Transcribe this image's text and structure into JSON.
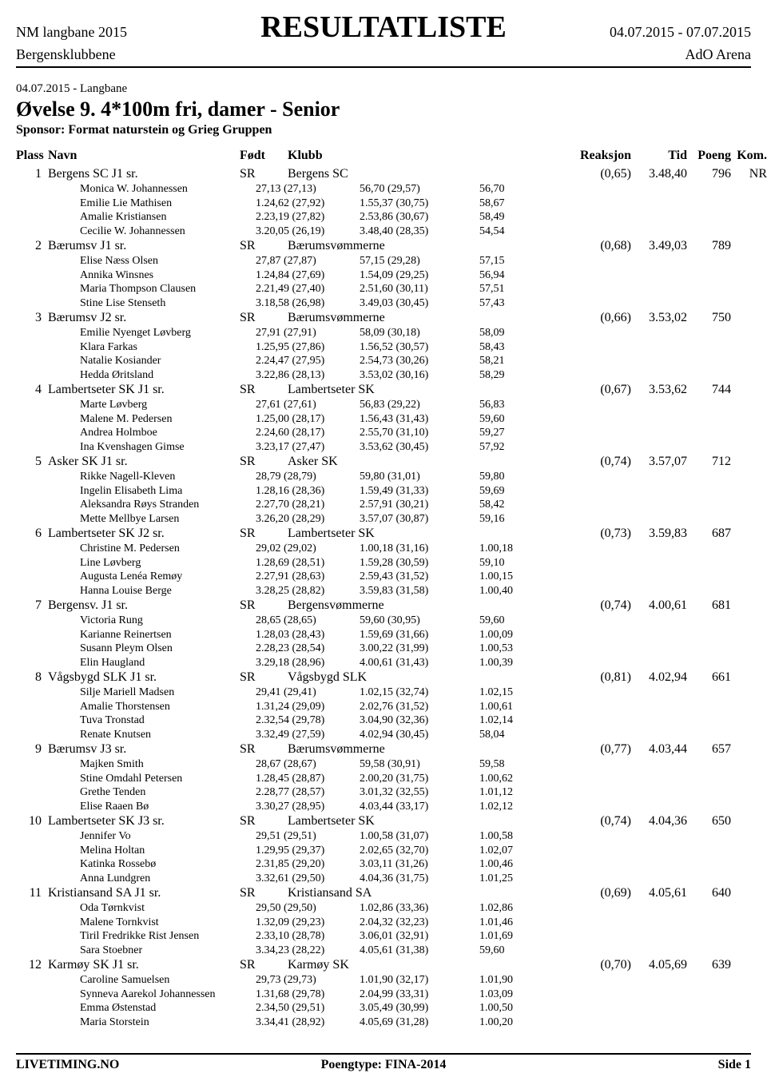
{
  "header": {
    "meet_name": "NM langbane 2015",
    "title": "RESULTATLISTE",
    "date_range": "04.07.2015 - 07.07.2015",
    "club": "Bergensklubbene",
    "venue": "AdO Arena"
  },
  "event": {
    "date_line": "04.07.2015 - Langbane",
    "title": "Øvelse 9. 4*100m fri, damer - Senior",
    "sponsor": "Sponsor: Format naturstein og Grieg Gruppen"
  },
  "columns": {
    "place": "Plass",
    "name": "Navn",
    "born": "Født",
    "club": "Klubb",
    "reaction": "Reaksjon",
    "time": "Tid",
    "points": "Poeng",
    "comment": "Kom."
  },
  "results": [
    {
      "place": "1",
      "team": "Bergens SC J1 sr.",
      "born": "SR",
      "club": "Bergens SC",
      "reaction": "(0,65)",
      "time": "3.48,40",
      "points": "796",
      "comment": "NR",
      "swimmers": [
        {
          "name": "Monica W. Johannessen",
          "s1": "27,13 (27,13)",
          "s2": "56,70 (29,57)",
          "s3": "56,70"
        },
        {
          "name": "Emilie Lie Mathisen",
          "s1": "1.24,62 (27,92)",
          "s2": "1.55,37 (30,75)",
          "s3": "58,67"
        },
        {
          "name": "Amalie Kristiansen",
          "s1": "2.23,19 (27,82)",
          "s2": "2.53,86 (30,67)",
          "s3": "58,49"
        },
        {
          "name": "Cecilie W. Johannessen",
          "s1": "3.20,05 (26,19)",
          "s2": "3.48,40 (28,35)",
          "s3": "54,54"
        }
      ]
    },
    {
      "place": "2",
      "team": "Bærumsv J1 sr.",
      "born": "SR",
      "club": "Bærumsvømmerne",
      "reaction": "(0,68)",
      "time": "3.49,03",
      "points": "789",
      "comment": "",
      "swimmers": [
        {
          "name": "Elise Næss Olsen",
          "s1": "27,87 (27,87)",
          "s2": "57,15 (29,28)",
          "s3": "57,15"
        },
        {
          "name": "Annika Winsnes",
          "s1": "1.24,84 (27,69)",
          "s2": "1.54,09 (29,25)",
          "s3": "56,94"
        },
        {
          "name": "Maria Thompson Clausen",
          "s1": "2.21,49 (27,40)",
          "s2": "2.51,60 (30,11)",
          "s3": "57,51"
        },
        {
          "name": "Stine Lise Stenseth",
          "s1": "3.18,58 (26,98)",
          "s2": "3.49,03 (30,45)",
          "s3": "57,43"
        }
      ]
    },
    {
      "place": "3",
      "team": "Bærumsv J2 sr.",
      "born": "SR",
      "club": "Bærumsvømmerne",
      "reaction": "(0,66)",
      "time": "3.53,02",
      "points": "750",
      "comment": "",
      "swimmers": [
        {
          "name": "Emilie Nyenget Løvberg",
          "s1": "27,91 (27,91)",
          "s2": "58,09 (30,18)",
          "s3": "58,09"
        },
        {
          "name": "Klara Farkas",
          "s1": "1.25,95 (27,86)",
          "s2": "1.56,52 (30,57)",
          "s3": "58,43"
        },
        {
          "name": "Natalie Kosiander",
          "s1": "2.24,47 (27,95)",
          "s2": "2.54,73 (30,26)",
          "s3": "58,21"
        },
        {
          "name": "Hedda Øritsland",
          "s1": "3.22,86 (28,13)",
          "s2": "3.53,02 (30,16)",
          "s3": "58,29"
        }
      ]
    },
    {
      "place": "4",
      "team": "Lambertseter SK J1 sr.",
      "born": "SR",
      "club": "Lambertseter SK",
      "reaction": "(0,67)",
      "time": "3.53,62",
      "points": "744",
      "comment": "",
      "swimmers": [
        {
          "name": "Marte Løvberg",
          "s1": "27,61 (27,61)",
          "s2": "56,83 (29,22)",
          "s3": "56,83"
        },
        {
          "name": "Malene M. Pedersen",
          "s1": "1.25,00 (28,17)",
          "s2": "1.56,43 (31,43)",
          "s3": "59,60"
        },
        {
          "name": "Andrea Holmboe",
          "s1": "2.24,60 (28,17)",
          "s2": "2.55,70 (31,10)",
          "s3": "59,27"
        },
        {
          "name": "Ina Kvenshagen Gimse",
          "s1": "3.23,17 (27,47)",
          "s2": "3.53,62 (30,45)",
          "s3": "57,92"
        }
      ]
    },
    {
      "place": "5",
      "team": "Asker SK J1 sr.",
      "born": "SR",
      "club": "Asker SK",
      "reaction": "(0,74)",
      "time": "3.57,07",
      "points": "712",
      "comment": "",
      "swimmers": [
        {
          "name": "Rikke Nagell-Kleven",
          "s1": "28,79 (28,79)",
          "s2": "59,80 (31,01)",
          "s3": "59,80"
        },
        {
          "name": "Ingelin Elisabeth Lima",
          "s1": "1.28,16 (28,36)",
          "s2": "1.59,49 (31,33)",
          "s3": "59,69"
        },
        {
          "name": "Aleksandra Røys Stranden",
          "s1": "2.27,70 (28,21)",
          "s2": "2.57,91 (30,21)",
          "s3": "58,42"
        },
        {
          "name": "Mette Mellbye Larsen",
          "s1": "3.26,20 (28,29)",
          "s2": "3.57,07 (30,87)",
          "s3": "59,16"
        }
      ]
    },
    {
      "place": "6",
      "team": "Lambertseter SK J2 sr.",
      "born": "SR",
      "club": "Lambertseter SK",
      "reaction": "(0,73)",
      "time": "3.59,83",
      "points": "687",
      "comment": "",
      "swimmers": [
        {
          "name": "Christine M. Pedersen",
          "s1": "29,02 (29,02)",
          "s2": "1.00,18 (31,16)",
          "s3": "1.00,18"
        },
        {
          "name": "Line Løvberg",
          "s1": "1.28,69 (28,51)",
          "s2": "1.59,28 (30,59)",
          "s3": "59,10"
        },
        {
          "name": "Augusta Lenéa Remøy",
          "s1": "2.27,91 (28,63)",
          "s2": "2.59,43 (31,52)",
          "s3": "1.00,15"
        },
        {
          "name": "Hanna Louise Berge",
          "s1": "3.28,25 (28,82)",
          "s2": "3.59,83 (31,58)",
          "s3": "1.00,40"
        }
      ]
    },
    {
      "place": "7",
      "team": "Bergensv. J1 sr.",
      "born": "SR",
      "club": "Bergensvømmerne",
      "reaction": "(0,74)",
      "time": "4.00,61",
      "points": "681",
      "comment": "",
      "swimmers": [
        {
          "name": "Victoria Rung",
          "s1": "28,65 (28,65)",
          "s2": "59,60 (30,95)",
          "s3": "59,60"
        },
        {
          "name": "Karianne Reinertsen",
          "s1": "1.28,03 (28,43)",
          "s2": "1.59,69 (31,66)",
          "s3": "1.00,09"
        },
        {
          "name": "Susann Pleym Olsen",
          "s1": "2.28,23 (28,54)",
          "s2": "3.00,22 (31,99)",
          "s3": "1.00,53"
        },
        {
          "name": "Elin Haugland",
          "s1": "3.29,18 (28,96)",
          "s2": "4.00,61 (31,43)",
          "s3": "1.00,39"
        }
      ]
    },
    {
      "place": "8",
      "team": "Vågsbygd SLK J1 sr.",
      "born": "SR",
      "club": "Vågsbygd SLK",
      "reaction": "(0,81)",
      "time": "4.02,94",
      "points": "661",
      "comment": "",
      "swimmers": [
        {
          "name": "Silje Mariell Madsen",
          "s1": "29,41 (29,41)",
          "s2": "1.02,15 (32,74)",
          "s3": "1.02,15"
        },
        {
          "name": "Amalie Thorstensen",
          "s1": "1.31,24 (29,09)",
          "s2": "2.02,76 (31,52)",
          "s3": "1.00,61"
        },
        {
          "name": "Tuva Tronstad",
          "s1": "2.32,54 (29,78)",
          "s2": "3.04,90 (32,36)",
          "s3": "1.02,14"
        },
        {
          "name": "Renate Knutsen",
          "s1": "3.32,49 (27,59)",
          "s2": "4.02,94 (30,45)",
          "s3": "58,04"
        }
      ]
    },
    {
      "place": "9",
      "team": "Bærumsv J3 sr.",
      "born": "SR",
      "club": "Bærumsvømmerne",
      "reaction": "(0,77)",
      "time": "4.03,44",
      "points": "657",
      "comment": "",
      "swimmers": [
        {
          "name": "Majken Smith",
          "s1": "28,67 (28,67)",
          "s2": "59,58 (30,91)",
          "s3": "59,58"
        },
        {
          "name": "Stine Omdahl Petersen",
          "s1": "1.28,45 (28,87)",
          "s2": "2.00,20 (31,75)",
          "s3": "1.00,62"
        },
        {
          "name": "Grethe Tenden",
          "s1": "2.28,77 (28,57)",
          "s2": "3.01,32 (32,55)",
          "s3": "1.01,12"
        },
        {
          "name": "Elise Raaen Bø",
          "s1": "3.30,27 (28,95)",
          "s2": "4.03,44 (33,17)",
          "s3": "1.02,12"
        }
      ]
    },
    {
      "place": "10",
      "team": "Lambertseter SK J3 sr.",
      "born": "SR",
      "club": "Lambertseter SK",
      "reaction": "(0,74)",
      "time": "4.04,36",
      "points": "650",
      "comment": "",
      "swimmers": [
        {
          "name": "Jennifer Vo",
          "s1": "29,51 (29,51)",
          "s2": "1.00,58 (31,07)",
          "s3": "1.00,58"
        },
        {
          "name": "Melina Holtan",
          "s1": "1.29,95 (29,37)",
          "s2": "2.02,65 (32,70)",
          "s3": "1.02,07"
        },
        {
          "name": "Katinka Rossebø",
          "s1": "2.31,85 (29,20)",
          "s2": "3.03,11 (31,26)",
          "s3": "1.00,46"
        },
        {
          "name": "Anna Lundgren",
          "s1": "3.32,61 (29,50)",
          "s2": "4.04,36 (31,75)",
          "s3": "1.01,25"
        }
      ]
    },
    {
      "place": "11",
      "team": "Kristiansand SA J1 sr.",
      "born": "SR",
      "club": "Kristiansand SA",
      "reaction": "(0,69)",
      "time": "4.05,61",
      "points": "640",
      "comment": "",
      "swimmers": [
        {
          "name": "Oda Tørnkvist",
          "s1": "29,50 (29,50)",
          "s2": "1.02,86 (33,36)",
          "s3": "1.02,86"
        },
        {
          "name": "Malene Tornkvist",
          "s1": "1.32,09 (29,23)",
          "s2": "2.04,32 (32,23)",
          "s3": "1.01,46"
        },
        {
          "name": "Tiril Fredrikke Rist Jensen",
          "s1": "2.33,10 (28,78)",
          "s2": "3.06,01 (32,91)",
          "s3": "1.01,69"
        },
        {
          "name": "Sara Stoebner",
          "s1": "3.34,23 (28,22)",
          "s2": "4.05,61 (31,38)",
          "s3": "59,60"
        }
      ]
    },
    {
      "place": "12",
      "team": "Karmøy SK J1 sr.",
      "born": "SR",
      "club": "Karmøy SK",
      "reaction": "(0,70)",
      "time": "4.05,69",
      "points": "639",
      "comment": "",
      "swimmers": [
        {
          "name": "Caroline Samuelsen",
          "s1": "29,73 (29,73)",
          "s2": "1.01,90 (32,17)",
          "s3": "1.01,90"
        },
        {
          "name": "Synneva Aarekol Johannessen",
          "s1": "1.31,68 (29,78)",
          "s2": "2.04,99 (33,31)",
          "s3": "1.03,09"
        },
        {
          "name": "Emma Østenstad",
          "s1": "2.34,50 (29,51)",
          "s2": "3.05,49 (30,99)",
          "s3": "1.00,50"
        },
        {
          "name": "Maria Storstein",
          "s1": "3.34,41 (28,92)",
          "s2": "4.05,69 (31,28)",
          "s3": "1.00,20"
        }
      ]
    }
  ],
  "footer": {
    "left": "LIVETIMING.NO",
    "center": "Poengtype: FINA-2014",
    "right": "Side 1"
  }
}
